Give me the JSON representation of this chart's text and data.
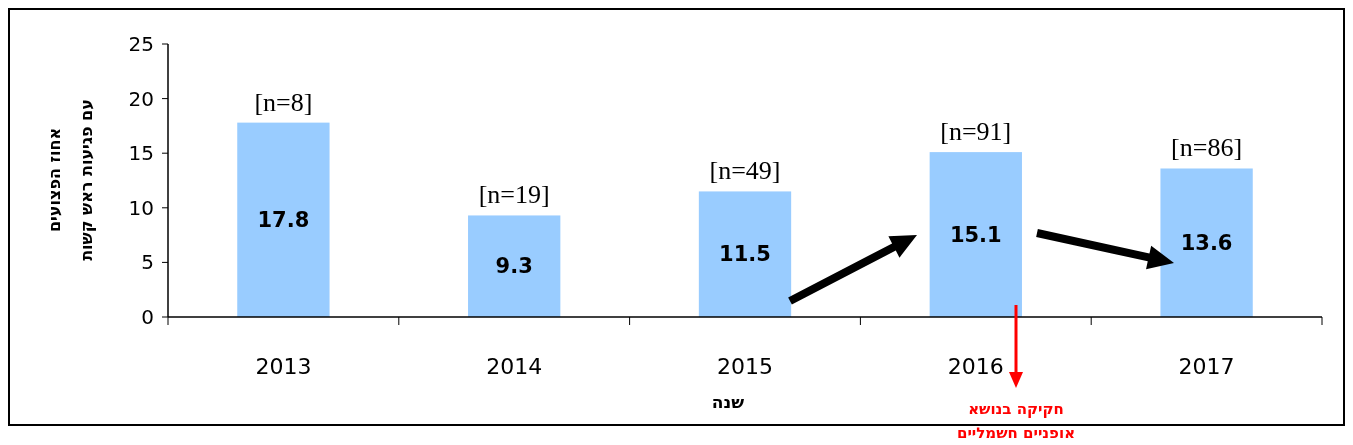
{
  "chart_data": {
    "type": "bar",
    "categories": [
      "2013",
      "2014",
      "2015",
      "2016",
      "2017"
    ],
    "values": [
      17.8,
      9.3,
      11.5,
      15.1,
      13.6
    ],
    "color": "#99ccff",
    "data_labels": true,
    "ylim": [
      0,
      25
    ],
    "yticks": [
      0,
      5,
      10,
      15,
      20,
      25
    ],
    "xlabel": "שנה",
    "ylabel": "אחוז הפצועים\nעם פגיעות ראש קשות",
    "annotations": [
      {
        "text": "[n=8]",
        "x": "2013",
        "y": 17.8
      },
      {
        "text": "[n=19]",
        "x": "2014",
        "y": 9.3
      },
      {
        "text": "[n=49]",
        "x": "2015",
        "y": 11.5
      },
      {
        "text": "[n=91]",
        "x": "2016",
        "y": 15.1
      },
      {
        "text": "[n=86]",
        "x": "2017",
        "y": 13.6
      },
      "חקיקה בנושא\nאופניים חשמליים"
    ]
  }
}
